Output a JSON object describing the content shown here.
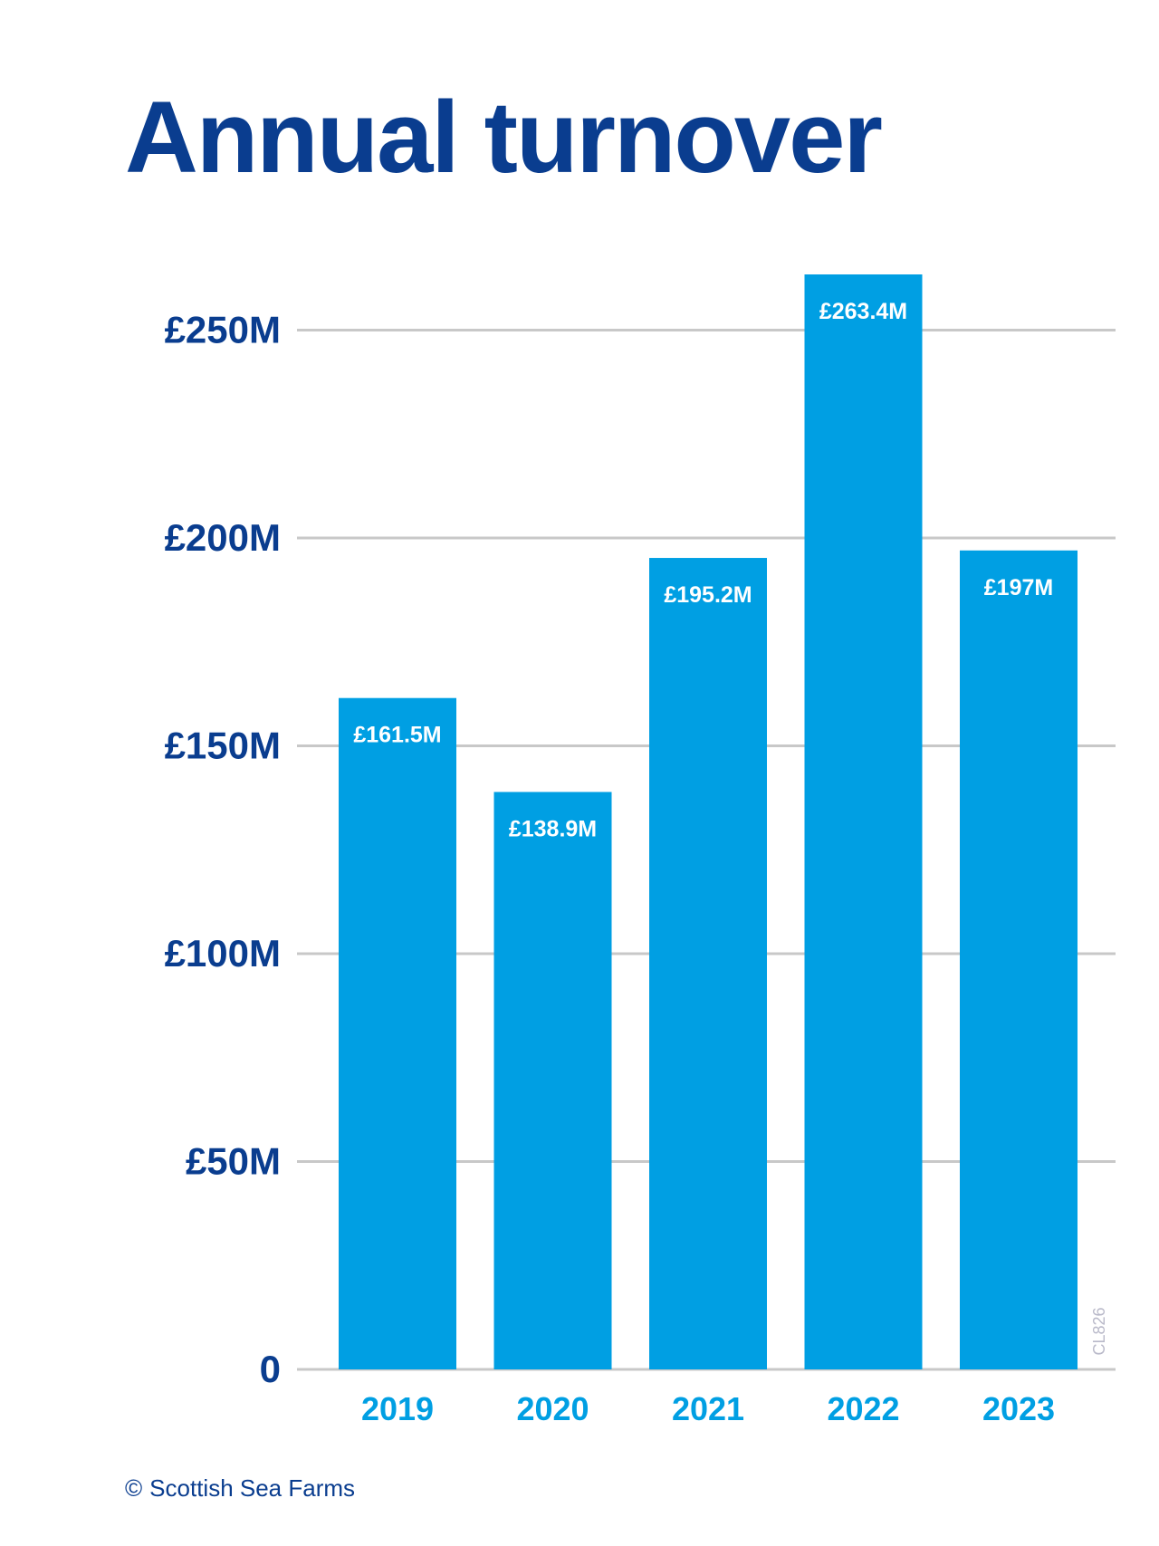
{
  "title": "Annual turnover",
  "footer": {
    "copyright_symbol": "©",
    "owner": "Scottish Sea Farms"
  },
  "watermark": "CL826",
  "colors": {
    "title": "#0a3d8f",
    "bar": "#009fe3",
    "bar_label": "#ffffff",
    "y_tick_label": "#0a3d8f",
    "x_tick_label": "#009fe3",
    "gridline": "#c8c8c8",
    "watermark": "#b9b9c9"
  },
  "chart_data": {
    "type": "bar",
    "title": "Annual turnover",
    "xlabel": "",
    "ylabel": "",
    "categories": [
      "2019",
      "2020",
      "2021",
      "2022",
      "2023"
    ],
    "values": [
      161.5,
      138.9,
      195.2,
      263.4,
      197
    ],
    "value_labels": [
      "£161.5M",
      "£138.9M",
      "£195.2M",
      "£263.4M",
      "£197M"
    ],
    "ylim": [
      0,
      263.4
    ],
    "yticks": [
      0,
      50,
      100,
      150,
      200,
      250
    ],
    "ytick_labels": [
      "0",
      "£50M",
      "£100M",
      "£150M",
      "£200M",
      "£250M"
    ],
    "unit": "£M",
    "grid": true,
    "legend": "none"
  }
}
